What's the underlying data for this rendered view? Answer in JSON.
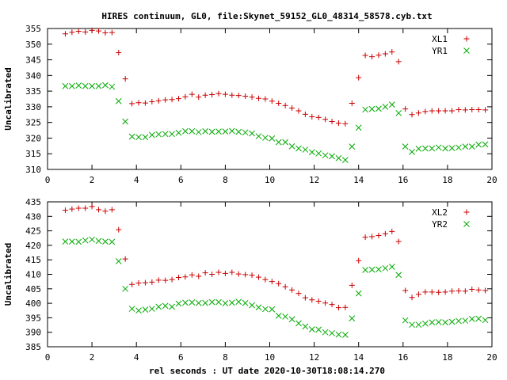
{
  "title": "HIRES continuum, GL0, file:Skynet_59152_GL0_48314_58578.cyb.txt",
  "xlabel": "rel seconds : UT date 2020-10-30T18:08:14.270",
  "colors": {
    "s1": "#cc0000",
    "s2": "#00aa00"
  },
  "chart_data": [
    {
      "type": "scatter",
      "ylabel": "Uncalibrated",
      "xlim": [
        0,
        20
      ],
      "ylim": [
        310,
        355
      ],
      "xticks": [
        0,
        2,
        4,
        6,
        8,
        10,
        12,
        14,
        16,
        18,
        20
      ],
      "yticks": [
        310,
        315,
        320,
        325,
        330,
        335,
        340,
        345,
        350,
        355
      ],
      "legend": "top-right",
      "series": [
        {
          "name": "XL1",
          "marker": "plus",
          "x": [
            0.8,
            1.1,
            1.4,
            1.7,
            2.0,
            2.3,
            2.6,
            2.9,
            3.2,
            3.5,
            3.8,
            4.1,
            4.4,
            4.7,
            5.0,
            5.3,
            5.6,
            5.9,
            6.2,
            6.5,
            6.8,
            7.1,
            7.4,
            7.7,
            8.0,
            8.3,
            8.6,
            8.9,
            9.2,
            9.5,
            9.8,
            10.1,
            10.4,
            10.7,
            11.0,
            11.3,
            11.6,
            11.9,
            12.2,
            12.5,
            12.8,
            13.1,
            13.4,
            13.7,
            14.0,
            14.3,
            14.6,
            14.9,
            15.2,
            15.5,
            15.8,
            16.1,
            16.4,
            16.7,
            17.0,
            17.3,
            17.6,
            17.9,
            18.2,
            18.5,
            18.8,
            19.1,
            19.4,
            19.7
          ],
          "y": [
            353.3,
            353.8,
            354.1,
            353.9,
            354.4,
            354.2,
            353.6,
            353.7,
            347.3,
            338.9,
            331.0,
            331.3,
            331.2,
            331.6,
            331.9,
            332.2,
            332.3,
            332.6,
            333.2,
            334.0,
            333.1,
            333.7,
            333.9,
            334.2,
            334.0,
            333.7,
            333.6,
            333.4,
            333.1,
            332.7,
            332.5,
            331.8,
            331.1,
            330.4,
            329.6,
            328.7,
            327.6,
            326.8,
            326.6,
            326.0,
            325.3,
            324.8,
            324.6,
            331.1,
            339.3,
            346.4,
            346.0,
            346.5,
            346.9,
            347.5,
            344.4,
            329.3,
            327.5,
            328.0,
            328.5,
            328.7,
            328.7,
            328.7,
            328.7,
            329.1,
            329.0,
            329.1,
            329.1,
            329.0
          ]
        },
        {
          "name": "YR1",
          "marker": "cross",
          "x": [
            0.8,
            1.1,
            1.4,
            1.7,
            2.0,
            2.3,
            2.6,
            2.9,
            3.2,
            3.5,
            3.8,
            4.1,
            4.4,
            4.7,
            5.0,
            5.3,
            5.6,
            5.9,
            6.2,
            6.5,
            6.8,
            7.1,
            7.4,
            7.7,
            8.0,
            8.3,
            8.6,
            8.9,
            9.2,
            9.5,
            9.8,
            10.1,
            10.4,
            10.7,
            11.0,
            11.3,
            11.6,
            11.9,
            12.2,
            12.5,
            12.8,
            13.1,
            13.4,
            13.7,
            14.0,
            14.3,
            14.6,
            14.9,
            15.2,
            15.5,
            15.8,
            16.1,
            16.4,
            16.7,
            17.0,
            17.3,
            17.6,
            17.9,
            18.2,
            18.5,
            18.8,
            19.1,
            19.4,
            19.7
          ],
          "y": [
            336.6,
            336.6,
            336.8,
            336.6,
            336.6,
            336.6,
            336.9,
            336.4,
            331.8,
            325.3,
            320.5,
            320.3,
            320.3,
            321.0,
            321.2,
            321.3,
            321.3,
            321.7,
            322.2,
            322.2,
            321.9,
            322.2,
            322.0,
            322.1,
            322.1,
            322.3,
            322.0,
            321.8,
            321.5,
            320.6,
            320.1,
            319.9,
            318.7,
            318.7,
            317.4,
            316.7,
            316.3,
            315.5,
            315.1,
            314.5,
            314.2,
            313.6,
            313.0,
            317.3,
            323.3,
            329.1,
            329.3,
            329.4,
            330.0,
            330.7,
            328.0,
            317.3,
            315.6,
            316.6,
            316.7,
            316.7,
            317.0,
            316.7,
            316.8,
            317.0,
            317.3,
            317.3,
            317.9,
            318.0
          ]
        }
      ]
    },
    {
      "type": "scatter",
      "ylabel": "Uncalibrated",
      "xlim": [
        0,
        20
      ],
      "ylim": [
        385,
        435
      ],
      "xticks": [
        0,
        2,
        4,
        6,
        8,
        10,
        12,
        14,
        16,
        18,
        20
      ],
      "yticks": [
        385,
        390,
        395,
        400,
        405,
        410,
        415,
        420,
        425,
        430,
        435
      ],
      "legend": "top-right",
      "series": [
        {
          "name": "XL2",
          "marker": "plus",
          "x": [
            0.8,
            1.1,
            1.4,
            1.7,
            2.0,
            2.3,
            2.6,
            2.9,
            3.2,
            3.5,
            3.8,
            4.1,
            4.4,
            4.7,
            5.0,
            5.3,
            5.6,
            5.9,
            6.2,
            6.5,
            6.8,
            7.1,
            7.4,
            7.7,
            8.0,
            8.3,
            8.6,
            8.9,
            9.2,
            9.5,
            9.8,
            10.1,
            10.4,
            10.7,
            11.0,
            11.3,
            11.6,
            11.9,
            12.2,
            12.5,
            12.8,
            13.1,
            13.4,
            13.7,
            14.0,
            14.3,
            14.6,
            14.9,
            15.2,
            15.5,
            15.8,
            16.1,
            16.4,
            16.7,
            17.0,
            17.3,
            17.6,
            17.9,
            18.2,
            18.5,
            18.8,
            19.1,
            19.4,
            19.7
          ],
          "y": [
            432.1,
            432.5,
            432.8,
            432.8,
            433.4,
            432.3,
            431.8,
            432.3,
            425.4,
            415.3,
            406.5,
            407.0,
            407.1,
            407.3,
            408.0,
            407.9,
            408.2,
            408.9,
            409.1,
            409.8,
            409.3,
            410.5,
            410.0,
            410.7,
            410.3,
            410.7,
            410.1,
            409.9,
            409.7,
            409.0,
            408.2,
            407.5,
            406.8,
            405.7,
            404.6,
            403.4,
            401.9,
            401.2,
            400.7,
            400.1,
            399.6,
            398.5,
            398.6,
            406.2,
            414.7,
            422.8,
            423.0,
            423.4,
            424.0,
            424.8,
            421.3,
            404.4,
            402.0,
            403.1,
            403.9,
            403.9,
            403.8,
            403.9,
            404.2,
            404.3,
            404.2,
            404.8,
            404.6,
            404.4
          ]
        },
        {
          "name": "YR2",
          "marker": "cross",
          "x": [
            0.8,
            1.1,
            1.4,
            1.7,
            2.0,
            2.3,
            2.6,
            2.9,
            3.2,
            3.5,
            3.8,
            4.1,
            4.4,
            4.7,
            5.0,
            5.3,
            5.6,
            5.9,
            6.2,
            6.5,
            6.8,
            7.1,
            7.4,
            7.7,
            8.0,
            8.3,
            8.6,
            8.9,
            9.2,
            9.5,
            9.8,
            10.1,
            10.4,
            10.7,
            11.0,
            11.3,
            11.6,
            11.9,
            12.2,
            12.5,
            12.8,
            13.1,
            13.4,
            13.7,
            14.0,
            14.3,
            14.6,
            14.9,
            15.2,
            15.5,
            15.8,
            16.1,
            16.4,
            16.7,
            17.0,
            17.3,
            17.6,
            17.9,
            18.2,
            18.5,
            18.8,
            19.1,
            19.4,
            19.7
          ],
          "y": [
            421.3,
            421.3,
            421.2,
            421.7,
            422.0,
            421.5,
            421.3,
            421.2,
            414.5,
            405.0,
            398.1,
            397.5,
            397.8,
            398.1,
            398.8,
            399.1,
            398.8,
            399.9,
            400.2,
            400.3,
            400.1,
            400.1,
            400.4,
            400.4,
            400.0,
            400.2,
            400.5,
            400.1,
            399.3,
            398.6,
            398.0,
            397.9,
            395.7,
            395.4,
            394.5,
            393.1,
            392.0,
            391.0,
            390.9,
            390.0,
            389.7,
            389.2,
            389.1,
            394.8,
            403.4,
            411.5,
            411.6,
            411.7,
            412.1,
            412.6,
            409.8,
            394.1,
            392.6,
            392.6,
            393.0,
            393.4,
            393.5,
            393.4,
            393.6,
            393.9,
            394.0,
            394.6,
            394.7,
            394.2
          ]
        }
      ]
    }
  ]
}
